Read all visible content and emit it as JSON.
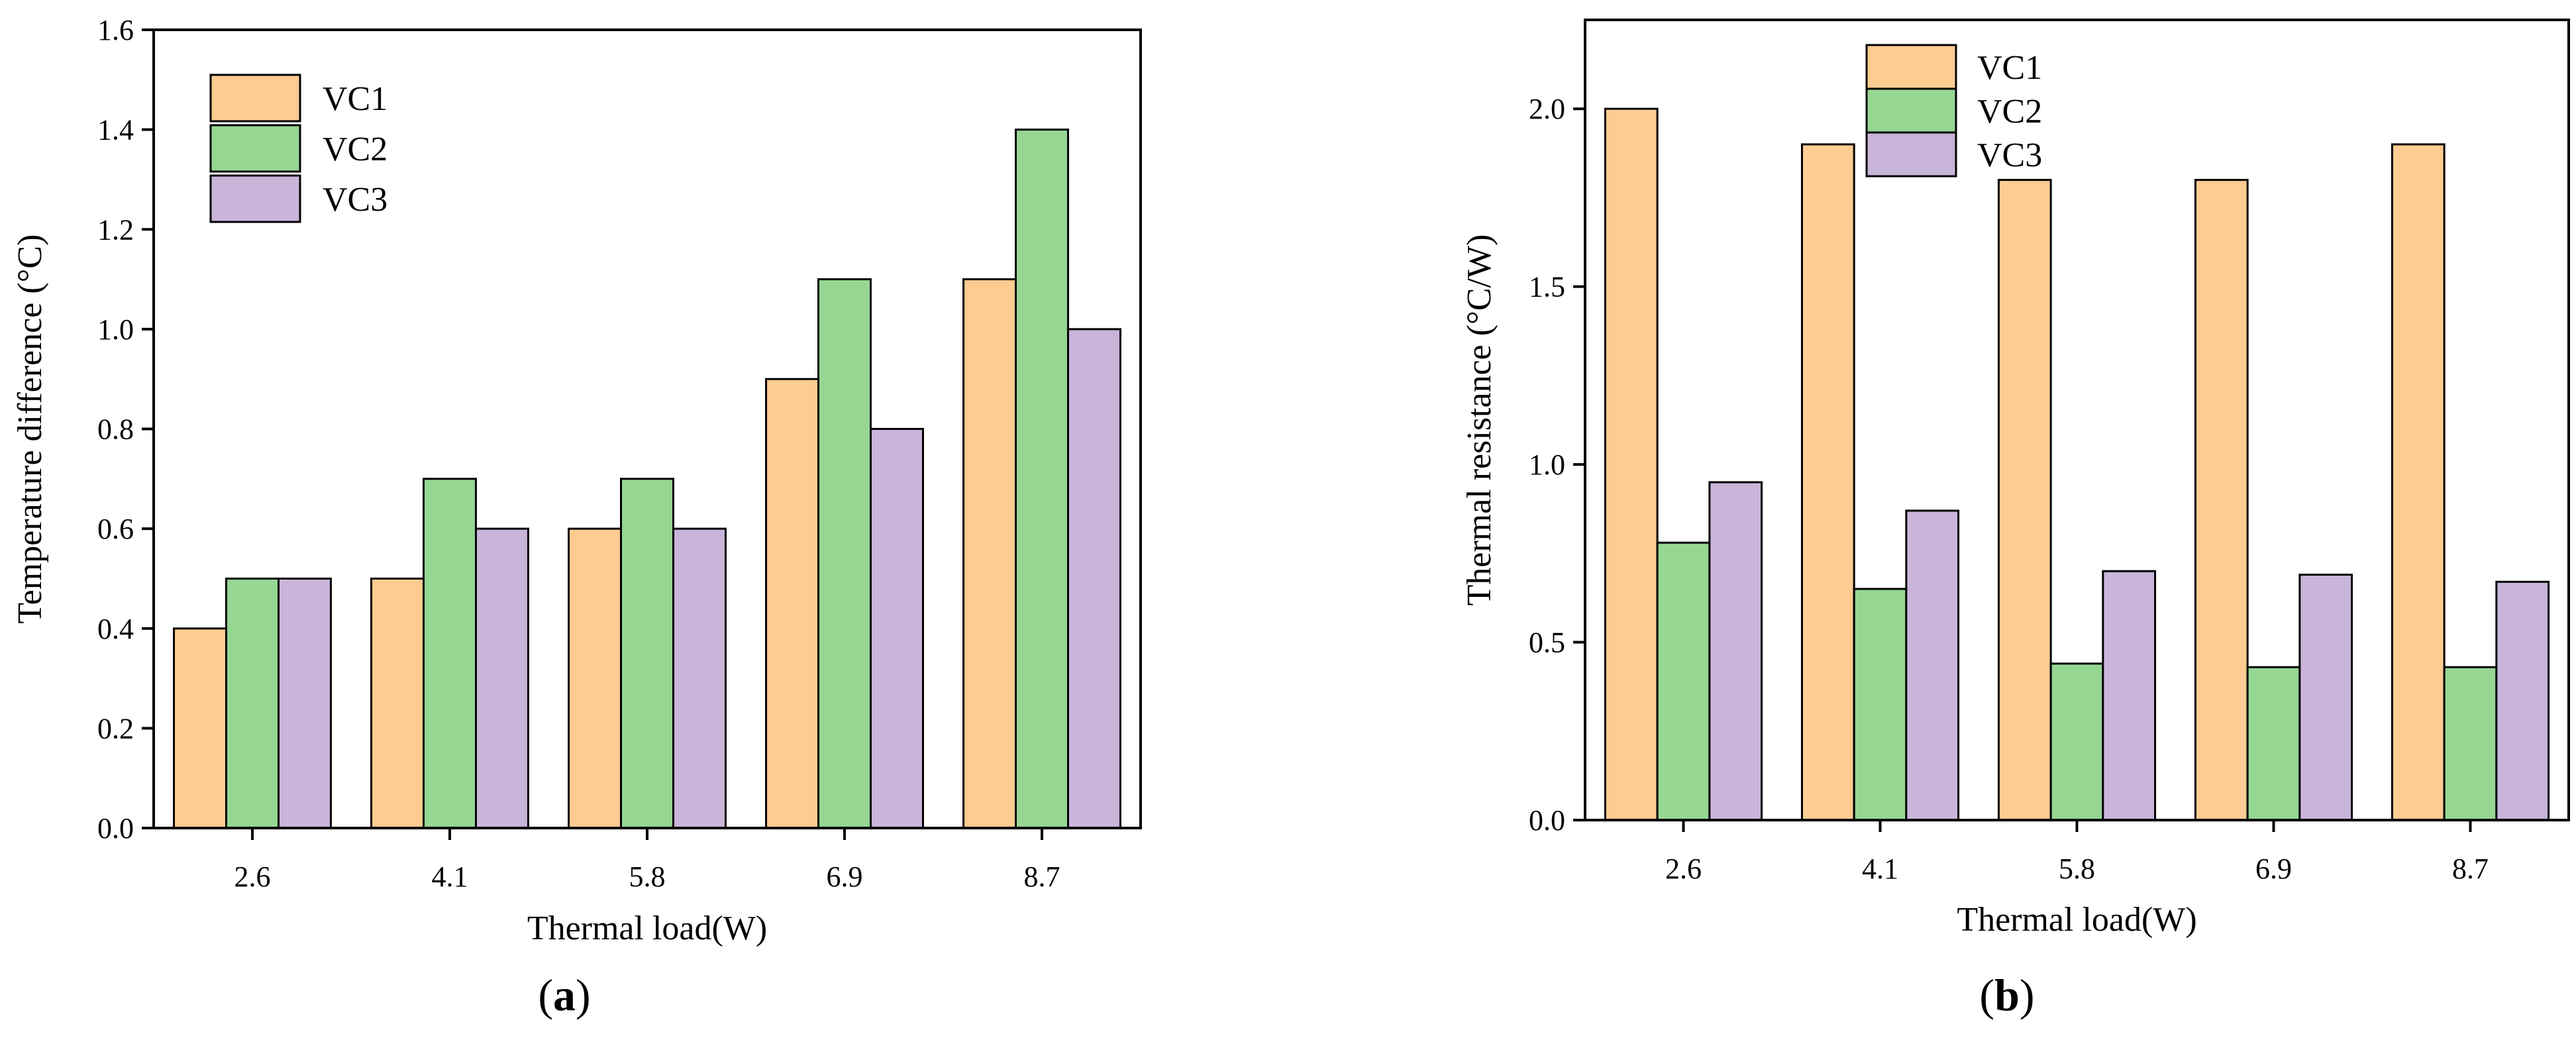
{
  "colors": {
    "VC1": "#FDCC92",
    "VC2": "#96D693",
    "VC3": "#C9B4DA",
    "outline": "#000000"
  },
  "chart_data": [
    {
      "type": "bar",
      "panel_label": "a",
      "title": "",
      "xlabel": "Thermal load(W)",
      "ylabel": "Temperature difference (°C)",
      "categories": [
        "2.6",
        "4.1",
        "5.8",
        "6.9",
        "8.7"
      ],
      "ylim": [
        0,
        1.6
      ],
      "yticks": [
        0.0,
        0.2,
        0.4,
        0.6,
        0.8,
        1.0,
        1.2,
        1.4,
        1.6
      ],
      "ytick_labels": [
        "0.0",
        "0.2",
        "0.4",
        "0.6",
        "0.8",
        "1.0",
        "1.2",
        "1.4",
        "1.6"
      ],
      "legend_position": "top-left",
      "series": [
        {
          "name": "VC1",
          "values": [
            0.4,
            0.5,
            0.6,
            0.9,
            1.1
          ]
        },
        {
          "name": "VC2",
          "values": [
            0.5,
            0.7,
            0.7,
            1.1,
            1.4
          ]
        },
        {
          "name": "VC3",
          "values": [
            0.5,
            0.6,
            0.6,
            0.8,
            1.0
          ]
        }
      ]
    },
    {
      "type": "bar",
      "panel_label": "b",
      "title": "",
      "xlabel": "Thermal load(W)",
      "ylabel": "Thermal resistance (°C/W)",
      "categories": [
        "2.6",
        "4.1",
        "5.8",
        "6.9",
        "8.7"
      ],
      "ylim": [
        0,
        2.25
      ],
      "yticks": [
        0.0,
        0.5,
        1.0,
        1.5,
        2.0
      ],
      "ytick_labels": [
        "0.0",
        "0.5",
        "1.0",
        "1.5",
        "2.0"
      ],
      "legend_position": "top-center",
      "series": [
        {
          "name": "VC1",
          "values": [
            2.0,
            1.9,
            1.8,
            1.8,
            1.9
          ]
        },
        {
          "name": "VC2",
          "values": [
            0.78,
            0.65,
            0.44,
            0.43,
            0.43
          ]
        },
        {
          "name": "VC3",
          "values": [
            0.95,
            0.87,
            0.7,
            0.69,
            0.67
          ]
        }
      ]
    }
  ]
}
